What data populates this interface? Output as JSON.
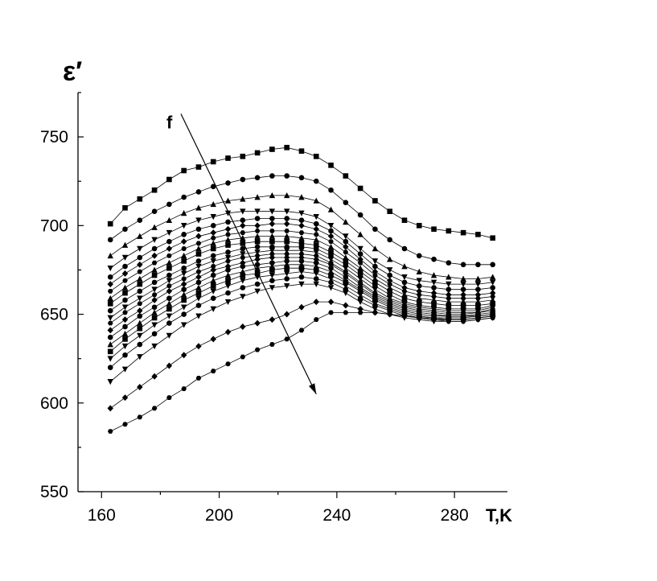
{
  "chart_data": {
    "type": "line",
    "title": "",
    "xlabel": "T,K",
    "ylabel": "ε′",
    "xlim": [
      152,
      298
    ],
    "ylim": [
      550,
      775
    ],
    "x_ticks": [
      160,
      200,
      240,
      280
    ],
    "y_ticks": [
      550,
      600,
      650,
      700,
      750
    ],
    "grid": false,
    "legend": "none",
    "annotation": {
      "label": "f",
      "arrow_from": [
        187,
        763
      ],
      "arrow_to": [
        233,
        605
      ]
    },
    "x": [
      163,
      168,
      173,
      178,
      183,
      188,
      193,
      198,
      203,
      208,
      213,
      218,
      223,
      228,
      233,
      238,
      243,
      248,
      253,
      258,
      263,
      268,
      273,
      278,
      283,
      288,
      293
    ],
    "series": [
      {
        "marker": "square",
        "values": [
          701,
          710,
          715,
          720,
          726,
          731,
          733,
          736,
          738,
          739,
          741,
          743,
          744,
          742,
          739,
          734,
          728,
          721,
          714,
          708,
          703,
          700,
          698,
          697,
          696,
          695,
          693
        ]
      },
      {
        "marker": "circle",
        "values": [
          692,
          698,
          703,
          708,
          712,
          716,
          719,
          722,
          724,
          726,
          727,
          728,
          728,
          727,
          725,
          720,
          713,
          706,
          698,
          692,
          687,
          683,
          681,
          679,
          678,
          678,
          678
        ]
      },
      {
        "marker": "triangle-up",
        "values": [
          683,
          689,
          694,
          699,
          703,
          707,
          710,
          712,
          714,
          715,
          716,
          717,
          717,
          716,
          714,
          709,
          702,
          695,
          687,
          681,
          677,
          674,
          672,
          671,
          670,
          670,
          671
        ]
      },
      {
        "marker": "triangle-down",
        "values": [
          676,
          682,
          687,
          692,
          696,
          700,
          703,
          705,
          707,
          708,
          708,
          708,
          708,
          707,
          705,
          700,
          694,
          687,
          680,
          675,
          671,
          669,
          668,
          667,
          667,
          667,
          668
        ]
      },
      {
        "marker": "circle",
        "values": [
          671,
          677,
          682,
          687,
          691,
          695,
          698,
          700,
          702,
          703,
          704,
          704,
          704,
          703,
          701,
          697,
          691,
          684,
          677,
          672,
          668,
          666,
          665,
          664,
          664,
          664,
          665
        ]
      },
      {
        "marker": "diamond",
        "values": [
          667,
          673,
          678,
          683,
          687,
          691,
          694,
          696,
          698,
          700,
          700,
          701,
          701,
          700,
          698,
          694,
          688,
          681,
          674,
          669,
          665,
          663,
          662,
          661,
          661,
          661,
          662
        ]
      },
      {
        "marker": "hexagon",
        "values": [
          663,
          669,
          674,
          679,
          683,
          687,
          690,
          693,
          695,
          696,
          697,
          697,
          697,
          696,
          695,
          691,
          685,
          679,
          672,
          667,
          663,
          661,
          660,
          659,
          659,
          659,
          660
        ]
      },
      {
        "marker": "triangle-up",
        "values": [
          659,
          665,
          670,
          675,
          679,
          683,
          687,
          690,
          692,
          693,
          694,
          694,
          694,
          693,
          692,
          688,
          682,
          676,
          670,
          665,
          661,
          659,
          658,
          657,
          657,
          657,
          658
        ]
      },
      {
        "marker": "square",
        "values": [
          656,
          662,
          667,
          672,
          676,
          680,
          684,
          687,
          689,
          690,
          691,
          691,
          691,
          690,
          689,
          685,
          680,
          674,
          668,
          663,
          659,
          657,
          656,
          655,
          655,
          655,
          656
        ]
      },
      {
        "marker": "circle",
        "values": [
          652,
          658,
          663,
          668,
          672,
          676,
          680,
          683,
          685,
          687,
          688,
          688,
          688,
          688,
          687,
          683,
          678,
          672,
          666,
          661,
          657,
          655,
          654,
          653,
          653,
          653,
          655
        ]
      },
      {
        "marker": "triangle-down",
        "values": [
          648,
          654,
          659,
          664,
          669,
          673,
          677,
          680,
          682,
          684,
          685,
          686,
          686,
          686,
          685,
          681,
          676,
          670,
          664,
          659,
          656,
          654,
          653,
          652,
          652,
          652,
          654
        ]
      },
      {
        "marker": "hexagon",
        "values": [
          645,
          651,
          656,
          661,
          666,
          670,
          674,
          677,
          680,
          682,
          683,
          684,
          684,
          684,
          683,
          679,
          674,
          668,
          662,
          658,
          655,
          653,
          652,
          651,
          651,
          651,
          653
        ]
      },
      {
        "marker": "diamond",
        "values": [
          641,
          647,
          652,
          658,
          663,
          667,
          671,
          675,
          677,
          679,
          681,
          682,
          682,
          682,
          681,
          678,
          673,
          667,
          661,
          657,
          654,
          652,
          651,
          650,
          650,
          651,
          652
        ]
      },
      {
        "marker": "circle",
        "values": [
          637,
          643,
          649,
          654,
          659,
          664,
          668,
          672,
          675,
          677,
          678,
          679,
          680,
          680,
          679,
          676,
          671,
          665,
          660,
          656,
          653,
          651,
          650,
          649,
          649,
          650,
          651
        ]
      },
      {
        "marker": "triangle-up",
        "values": [
          633,
          639,
          645,
          651,
          656,
          661,
          665,
          669,
          672,
          674,
          676,
          677,
          678,
          678,
          677,
          674,
          669,
          664,
          659,
          655,
          652,
          650,
          649,
          649,
          649,
          649,
          650
        ]
      },
      {
        "marker": "square",
        "values": [
          629,
          636,
          642,
          648,
          653,
          658,
          662,
          666,
          669,
          672,
          673,
          675,
          676,
          676,
          675,
          672,
          668,
          663,
          658,
          654,
          651,
          649,
          648,
          648,
          648,
          649,
          650
        ]
      },
      {
        "marker": "triangle-down",
        "values": [
          625,
          632,
          638,
          644,
          649,
          654,
          659,
          663,
          666,
          669,
          671,
          672,
          673,
          674,
          673,
          670,
          666,
          661,
          656,
          653,
          650,
          648,
          648,
          647,
          647,
          648,
          649
        ]
      },
      {
        "marker": "circle",
        "values": [
          620,
          627,
          633,
          639,
          645,
          650,
          655,
          659,
          662,
          665,
          667,
          669,
          670,
          671,
          670,
          668,
          664,
          659,
          655,
          652,
          649,
          648,
          647,
          647,
          647,
          648,
          649
        ]
      },
      {
        "marker": "triangle-down",
        "values": [
          612,
          619,
          626,
          632,
          638,
          644,
          649,
          653,
          657,
          660,
          663,
          665,
          666,
          667,
          667,
          665,
          662,
          657,
          653,
          650,
          648,
          647,
          646,
          646,
          646,
          647,
          648
        ]
      },
      {
        "marker": "diamond",
        "values": [
          597,
          603,
          609,
          615,
          621,
          627,
          632,
          636,
          640,
          643,
          645,
          647,
          650,
          654,
          657,
          657,
          655,
          653,
          651,
          650,
          649,
          648,
          647,
          647,
          647,
          648,
          649
        ]
      },
      {
        "marker": "hexagon",
        "values": [
          584,
          588,
          592,
          597,
          603,
          608,
          614,
          618,
          622,
          626,
          630,
          633,
          636,
          641,
          647,
          651,
          651,
          651,
          651,
          650,
          649,
          648,
          647,
          646,
          646,
          647,
          648
        ]
      }
    ]
  }
}
